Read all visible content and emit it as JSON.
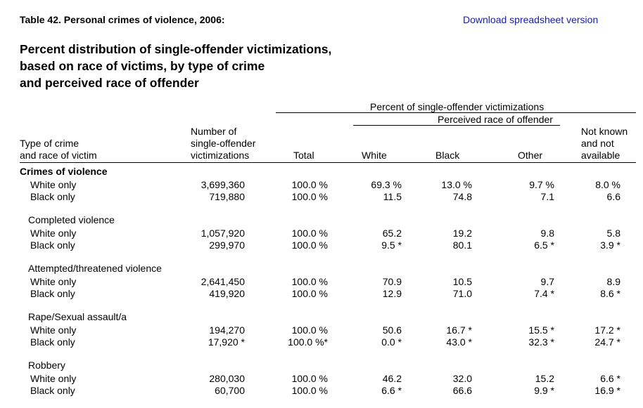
{
  "header": {
    "table_caption": "Table 42. Personal crimes of violence, 2006:",
    "download_link": "Download spreadsheet version",
    "title_lines": [
      "Percent distribution of single-offender victimizations,",
      "based on race of victims, by type of crime",
      "and perceived race of offender"
    ]
  },
  "columns": {
    "group_header": "Percent of single-offender victimizations",
    "subgroup_header": "Perceived race of offender",
    "type": [
      "Type of crime",
      "and race of victim"
    ],
    "number": [
      "Number of",
      "single-offender",
      "victimizations"
    ],
    "total": "Total",
    "white": "White",
    "black": "Black",
    "other": "Other",
    "not_known": [
      "Not known",
      "and not",
      "available"
    ]
  },
  "groups": [
    {
      "label": "Crimes of violence",
      "rows": [
        {
          "victim": "White only",
          "number": "3,699,360",
          "total": "100.0 %",
          "white": "69.3 %",
          "black": "13.0 %",
          "other": "9.7 %",
          "not_known": "8.0 %"
        },
        {
          "victim": "Black only",
          "number": "719,880",
          "total": "100.0 %",
          "white": "11.5",
          "black": "74.8",
          "other": "7.1",
          "not_known": "6.6"
        }
      ]
    },
    {
      "label": "Completed violence",
      "rows": [
        {
          "victim": "White only",
          "number": "1,057,920",
          "total": "100.0 %",
          "white": "65.2",
          "black": "19.2",
          "other": "9.8",
          "not_known": "5.8"
        },
        {
          "victim": "Black only",
          "number": "299,970",
          "total": "100.0 %",
          "white": "9.5 *",
          "black": "80.1",
          "other": "6.5 *",
          "not_known": "3.9 *"
        }
      ]
    },
    {
      "label": "Attempted/threatened violence",
      "rows": [
        {
          "victim": "White only",
          "number": "2,641,450",
          "total": "100.0 %",
          "white": "70.9",
          "black": "10.5",
          "other": "9.7",
          "not_known": "8.9"
        },
        {
          "victim": "Black only",
          "number": "419,920",
          "total": "100.0 %",
          "white": "12.9",
          "black": "71.0",
          "other": "7.4 *",
          "not_known": "8.6 *"
        }
      ]
    },
    {
      "label": "Rape/Sexual assault/a",
      "rows": [
        {
          "victim": "White only",
          "number": "194,270",
          "total": "100.0 %",
          "white": "50.6",
          "black": "16.7 *",
          "other": "15.5 *",
          "not_known": "17.2 *"
        },
        {
          "victim": "Black only",
          "number": "17,920 *",
          "total": "100.0 %*",
          "white": "0.0 *",
          "black": "43.0 *",
          "other": "32.3 *",
          "not_known": "24.7 *"
        }
      ]
    },
    {
      "label": "Robbery",
      "rows": [
        {
          "victim": "White only",
          "number": "280,030",
          "total": "100.0 %",
          "white": "46.2",
          "black": "32.0",
          "other": "15.2",
          "not_known": "6.6 *"
        },
        {
          "victim": "Black only",
          "number": "60,700",
          "total": "100.0 %",
          "white": "6.6 *",
          "black": "66.6",
          "other": "9.9 *",
          "not_known": "16.9 *"
        }
      ]
    }
  ]
}
